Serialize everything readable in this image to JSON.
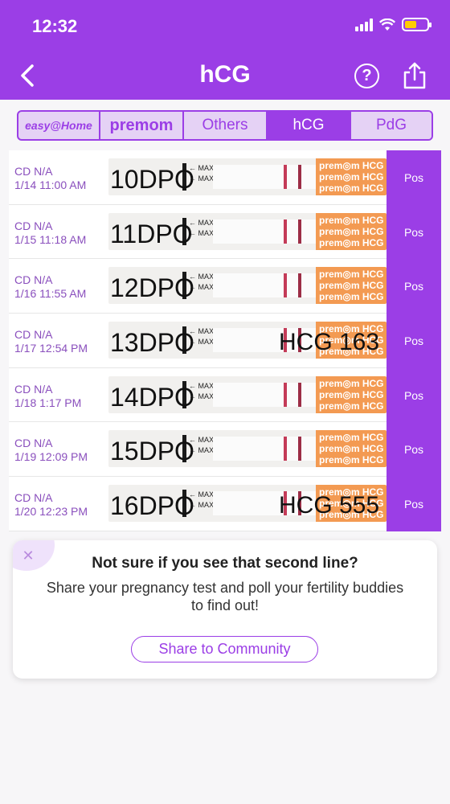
{
  "status_bar": {
    "time": "12:32"
  },
  "nav": {
    "title": "hCG",
    "help_symbol": "?"
  },
  "tabs": [
    {
      "label": "easy@Home",
      "active": false
    },
    {
      "label": "premom",
      "active": false
    },
    {
      "label": "Others",
      "active": false
    },
    {
      "label": "hCG",
      "active": true
    },
    {
      "label": "PdG",
      "active": false
    }
  ],
  "rows": [
    {
      "cd": "CD N/A",
      "datetime": "1/14 11:00 AM",
      "dpo": "10DPO",
      "hcg": "",
      "result": "Pos"
    },
    {
      "cd": "CD N/A",
      "datetime": "1/15 11:18 AM",
      "dpo": "11DPO",
      "hcg": "",
      "result": "Pos"
    },
    {
      "cd": "CD N/A",
      "datetime": "1/16 11:55 AM",
      "dpo": "12DPO",
      "hcg": "",
      "result": "Pos"
    },
    {
      "cd": "CD N/A",
      "datetime": "1/17 12:54 PM",
      "dpo": "13DPO",
      "hcg": "HCG 163",
      "result": "Pos"
    },
    {
      "cd": "CD N/A",
      "datetime": "1/18 1:17 PM",
      "dpo": "14DPO",
      "hcg": "",
      "result": "Pos"
    },
    {
      "cd": "CD N/A",
      "datetime": "1/19 12:09 PM",
      "dpo": "15DPO",
      "hcg": "",
      "result": "Pos"
    },
    {
      "cd": "CD N/A",
      "datetime": "1/20 12:23 PM",
      "dpo": "16DPO",
      "hcg": "HCG 555",
      "result": "Pos"
    }
  ],
  "strip_text": {
    "max": "MAX",
    "brand": "prem◎m HCG"
  },
  "share_card": {
    "close_symbol": "✕",
    "title": "Not sure if you see that second line?",
    "body": "Share your pregnancy test and poll your fertility buddies to find out!",
    "button": "Share to Community"
  },
  "colors": {
    "primary": "#9b3ee6",
    "meta_text": "#8a4fbd",
    "strip_brand": "#f39a52"
  }
}
